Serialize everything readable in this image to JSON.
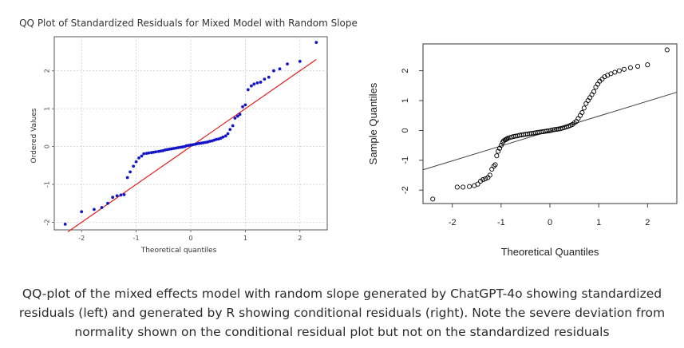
{
  "caption": "QQ-plot of the mixed effects model with random slope generated by ChatGPT-4o showing standardized residuals (left) and generated by R showing conditional residuals (right). Note the severe deviation from normality shown on the conditional residual plot but not on the standardized residuals",
  "chart_data": [
    {
      "type": "scatter",
      "title": "QQ Plot of Standardized Residuals for Mixed Model with Random Slope",
      "xlabel": "Theoretical quantiles",
      "ylabel": "Ordered Values",
      "xlim": [
        -2.5,
        2.5
      ],
      "ylim": [
        -2.2,
        2.9
      ],
      "x_ticks": [
        -2,
        -1,
        0,
        1,
        2
      ],
      "y_ticks": [
        -2,
        -1,
        0,
        1,
        2
      ],
      "x_tick_labels": [
        "-2",
        "-1",
        "0",
        "1",
        "2"
      ],
      "y_tick_labels": [
        "-2",
        "-1",
        "0",
        "1",
        "2"
      ],
      "grid": true,
      "point_color": "#1515c8",
      "line_color": "#e02020",
      "reference_line": {
        "intercept": 0.0,
        "slope": 1.0
      },
      "series": [
        {
          "x": [
            -2.3,
            -2.0,
            -1.77,
            -1.63,
            -1.52,
            -1.43,
            -1.35,
            -1.28,
            -1.22,
            -1.16,
            -1.11,
            -1.05,
            -1.0,
            -0.95,
            -0.9,
            -0.86,
            -0.81,
            -0.77,
            -0.72,
            -0.68,
            -0.64,
            -0.59,
            -0.55,
            -0.51,
            -0.47,
            -0.43,
            -0.39,
            -0.35,
            -0.31,
            -0.27,
            -0.23,
            -0.19,
            -0.15,
            -0.11,
            -0.08,
            -0.04,
            0.0,
            0.04,
            0.08,
            0.11,
            0.15,
            0.19,
            0.23,
            0.27,
            0.31,
            0.35,
            0.39,
            0.43,
            0.47,
            0.51,
            0.55,
            0.59,
            0.64,
            0.68,
            0.72,
            0.77,
            0.81,
            0.86,
            0.9,
            0.95,
            1.0,
            1.05,
            1.11,
            1.16,
            1.22,
            1.28,
            1.35,
            1.43,
            1.52,
            1.63,
            1.77,
            2.0,
            2.3
          ],
          "y": [
            -2.05,
            -1.72,
            -1.66,
            -1.61,
            -1.5,
            -1.34,
            -1.3,
            -1.28,
            -1.27,
            -0.82,
            -0.67,
            -0.52,
            -0.4,
            -0.3,
            -0.25,
            -0.19,
            -0.18,
            -0.17,
            -0.16,
            -0.15,
            -0.14,
            -0.13,
            -0.12,
            -0.11,
            -0.09,
            -0.08,
            -0.07,
            -0.06,
            -0.05,
            -0.04,
            -0.03,
            -0.02,
            -0.01,
            0.0,
            0.02,
            0.03,
            0.04,
            0.05,
            0.06,
            0.07,
            0.08,
            0.09,
            0.1,
            0.11,
            0.12,
            0.14,
            0.15,
            0.17,
            0.19,
            0.2,
            0.22,
            0.25,
            0.28,
            0.34,
            0.45,
            0.55,
            0.75,
            0.8,
            0.85,
            1.05,
            1.1,
            1.5,
            1.6,
            1.65,
            1.68,
            1.7,
            1.78,
            1.83,
            2.0,
            2.05,
            2.18,
            2.25,
            2.75
          ]
        }
      ]
    },
    {
      "type": "scatter",
      "title": "",
      "xlabel": "Theoretical Quantiles",
      "ylabel": "Sample Quantiles",
      "xlim": [
        -2.6,
        2.6
      ],
      "ylim": [
        -2.45,
        2.9
      ],
      "x_ticks": [
        -2,
        -1,
        0,
        1,
        2
      ],
      "y_ticks": [
        -2,
        -1,
        0,
        1,
        2
      ],
      "x_tick_labels": [
        "-2",
        "-1",
        "0",
        "1",
        "2"
      ],
      "y_tick_labels": [
        "-2",
        "-1",
        "0",
        "1",
        "2"
      ],
      "grid": false,
      "point_color": "#000000",
      "line_color": "#444444",
      "reference_line": {
        "intercept": -0.02,
        "slope": 0.5
      },
      "series": [
        {
          "x": [
            -2.4,
            -1.9,
            -1.78,
            -1.65,
            -1.55,
            -1.48,
            -1.42,
            -1.37,
            -1.32,
            -1.27,
            -1.23,
            -1.19,
            -1.15,
            -1.12,
            -1.09,
            -1.06,
            -1.03,
            -1.0,
            -0.97,
            -0.95,
            -0.92,
            -0.9,
            -0.88,
            -0.86,
            -0.82,
            -0.78,
            -0.74,
            -0.7,
            -0.66,
            -0.62,
            -0.58,
            -0.54,
            -0.5,
            -0.46,
            -0.42,
            -0.38,
            -0.34,
            -0.3,
            -0.26,
            -0.22,
            -0.18,
            -0.14,
            -0.1,
            -0.06,
            -0.02,
            0.02,
            0.06,
            0.1,
            0.14,
            0.18,
            0.22,
            0.26,
            0.3,
            0.34,
            0.38,
            0.42,
            0.46,
            0.5,
            0.54,
            0.58,
            0.62,
            0.66,
            0.7,
            0.74,
            0.78,
            0.82,
            0.86,
            0.9,
            0.94,
            0.98,
            1.02,
            1.07,
            1.12,
            1.18,
            1.25,
            1.33,
            1.42,
            1.52,
            1.65,
            1.8,
            2.0,
            2.4
          ],
          "y": [
            -2.3,
            -1.9,
            -1.9,
            -1.88,
            -1.85,
            -1.8,
            -1.7,
            -1.65,
            -1.62,
            -1.58,
            -1.5,
            -1.3,
            -1.2,
            -1.15,
            -0.85,
            -0.7,
            -0.6,
            -0.5,
            -0.4,
            -0.35,
            -0.32,
            -0.3,
            -0.28,
            -0.26,
            -0.24,
            -0.22,
            -0.2,
            -0.19,
            -0.18,
            -0.16,
            -0.15,
            -0.14,
            -0.13,
            -0.12,
            -0.11,
            -0.1,
            -0.09,
            -0.08,
            -0.07,
            -0.06,
            -0.05,
            -0.04,
            -0.03,
            -0.02,
            -0.01,
            0.0,
            0.02,
            0.03,
            0.04,
            0.05,
            0.06,
            0.08,
            0.1,
            0.12,
            0.14,
            0.17,
            0.2,
            0.25,
            0.3,
            0.4,
            0.5,
            0.6,
            0.75,
            0.9,
            1.0,
            1.1,
            1.2,
            1.3,
            1.45,
            1.55,
            1.65,
            1.72,
            1.8,
            1.85,
            1.9,
            1.95,
            2.0,
            2.05,
            2.1,
            2.15,
            2.2,
            2.7
          ]
        }
      ]
    }
  ]
}
